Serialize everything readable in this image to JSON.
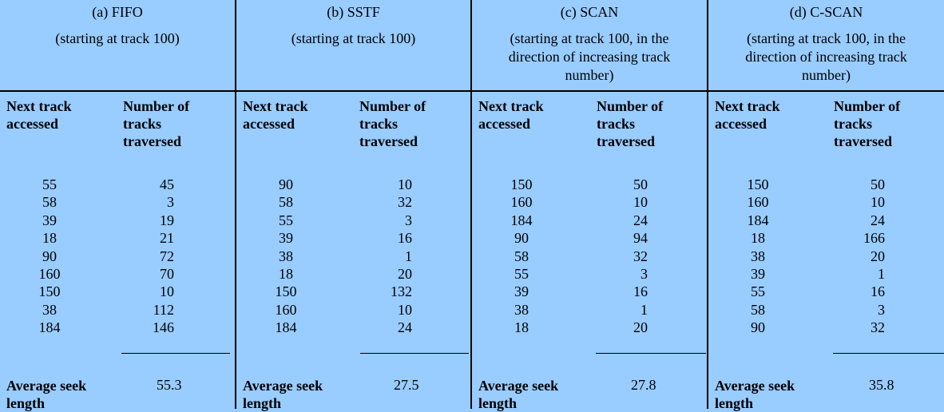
{
  "header_common": {
    "next_track": "Next track accessed",
    "tracks_traversed": "Number of tracks traversed",
    "average": "Average seek length"
  },
  "panels": [
    {
      "title": "(a) FIFO",
      "subtitle": "(starting at track 100)",
      "next": [
        "55",
        "58",
        "39",
        "18",
        "90",
        "160",
        "150",
        "38",
        "184"
      ],
      "traversed": [
        "45",
        "3",
        "19",
        "21",
        "72",
        "70",
        "10",
        "112",
        "146"
      ],
      "average": "55.3"
    },
    {
      "title": "(b) SSTF",
      "subtitle": "(starting at track 100)",
      "next": [
        "90",
        "58",
        "55",
        "39",
        "38",
        "18",
        "150",
        "160",
        "184"
      ],
      "traversed": [
        "10",
        "32",
        "3",
        "16",
        "1",
        "20",
        "132",
        "10",
        "24"
      ],
      "average": "27.5"
    },
    {
      "title": "(c) SCAN",
      "subtitle": "(starting at track 100, in the direction of increasing track number)",
      "next": [
        "150",
        "160",
        "184",
        "90",
        "58",
        "55",
        "39",
        "38",
        "18"
      ],
      "traversed": [
        "50",
        "10",
        "24",
        "94",
        "32",
        "3",
        "16",
        "1",
        "20"
      ],
      "average": "27.8"
    },
    {
      "title": "(d) C-SCAN",
      "subtitle": "(starting at track 100, in the direction of increasing track number)",
      "next": [
        "150",
        "160",
        "184",
        "18",
        "38",
        "39",
        "55",
        "58",
        "90"
      ],
      "traversed": [
        "50",
        "10",
        "24",
        "166",
        "20",
        "1",
        "16",
        "3",
        "32"
      ],
      "average": "35.8"
    }
  ]
}
